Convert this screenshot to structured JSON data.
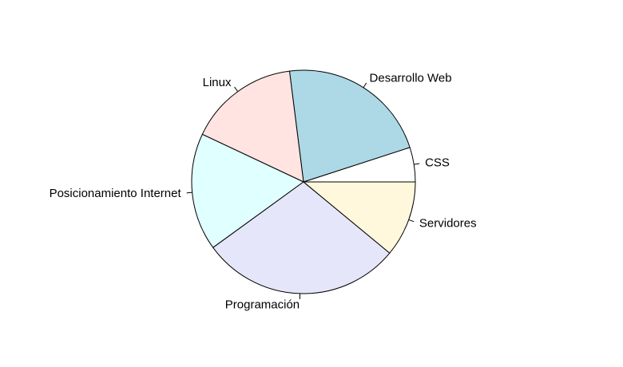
{
  "chart_data": {
    "type": "pie",
    "title": "",
    "direction": "counterclockwise",
    "start_angle_deg": 0,
    "slices": [
      {
        "label": "CSS",
        "value": 5,
        "color": "#FFFFFF"
      },
      {
        "label": "Desarrollo Web",
        "value": 22,
        "color": "#ADD8E6"
      },
      {
        "label": "Linux",
        "value": 16,
        "color": "#FFE4E1"
      },
      {
        "label": "Posicionamiento Internet",
        "value": 17,
        "color": "#E0FFFF"
      },
      {
        "label": "Programación",
        "value": 29,
        "color": "#E6E6FA"
      },
      {
        "label": "Servidores",
        "value": 11,
        "color": "#FFF8DC"
      }
    ]
  }
}
